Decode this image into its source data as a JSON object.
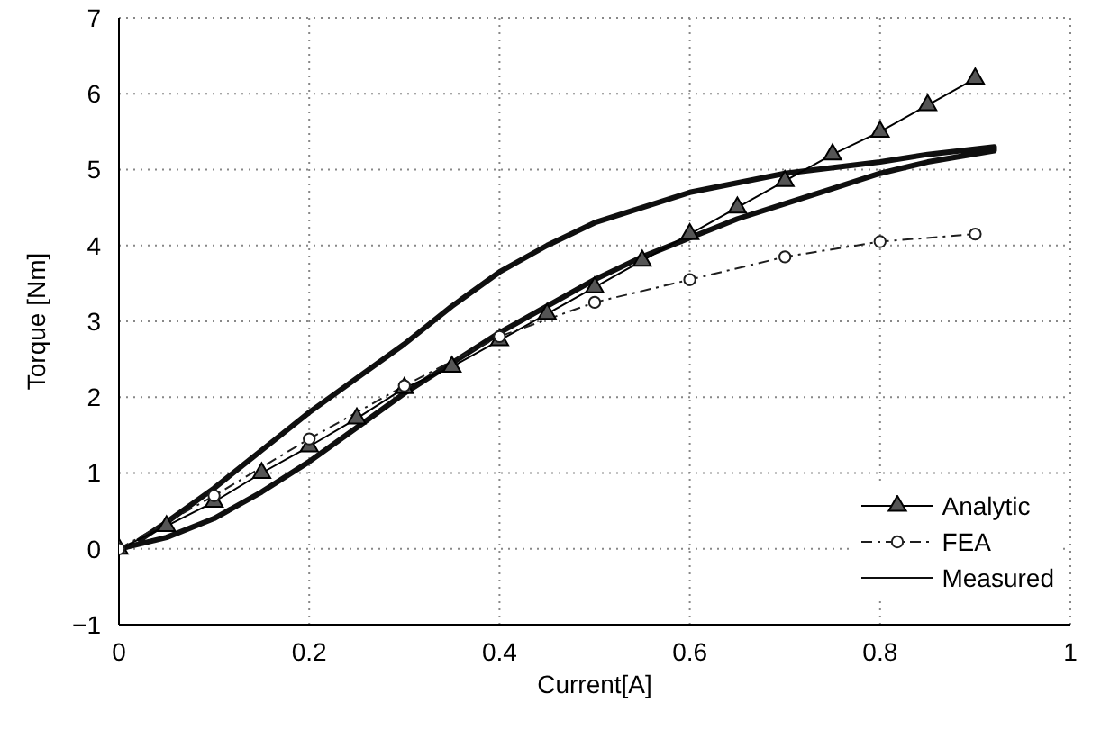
{
  "chart_data": {
    "type": "line",
    "xlabel": "Current[A]",
    "ylabel": "Torque [Nm]",
    "xlim": [
      0,
      1
    ],
    "ylim": [
      -1,
      7
    ],
    "xticks": [
      0,
      0.2,
      0.4,
      0.6,
      0.8,
      1
    ],
    "yticks": [
      -1,
      0,
      1,
      2,
      3,
      4,
      5,
      6,
      7
    ],
    "grid": true,
    "legend": "bottom right",
    "series": [
      {
        "name": "Analytic",
        "color": "#000000",
        "marker": "triangle",
        "line_style": "solid",
        "x": [
          0,
          0.05,
          0.1,
          0.15,
          0.2,
          0.25,
          0.3,
          0.35,
          0.4,
          0.45,
          0.5,
          0.55,
          0.6,
          0.65,
          0.7,
          0.75,
          0.8,
          0.85,
          0.9
        ],
        "values": [
          0,
          0.3,
          0.62,
          1.0,
          1.35,
          1.72,
          2.12,
          2.4,
          2.75,
          3.1,
          3.45,
          3.8,
          4.15,
          4.5,
          4.85,
          5.2,
          5.5,
          5.85,
          6.2
        ]
      },
      {
        "name": "FEA",
        "color": "#1e1e1e",
        "marker": "circle",
        "line_style": "dashed",
        "x": [
          0,
          0.1,
          0.2,
          0.3,
          0.4,
          0.5,
          0.6,
          0.7,
          0.8,
          0.9
        ],
        "values": [
          0,
          0.7,
          1.45,
          2.15,
          2.8,
          3.25,
          3.55,
          3.85,
          4.05,
          4.15
        ]
      },
      {
        "name": "Measured",
        "color": "#0f0f0f",
        "marker": "none",
        "line_style": "solid",
        "x": [
          0,
          0.05,
          0.1,
          0.15,
          0.2,
          0.25,
          0.3,
          0.35,
          0.4,
          0.45,
          0.5,
          0.55,
          0.6,
          0.65,
          0.7,
          0.75,
          0.8,
          0.85,
          0.92,
          0.92,
          0.85,
          0.8,
          0.7,
          0.6,
          0.5,
          0.45,
          0.4,
          0.35,
          0.3,
          0.25,
          0.2,
          0.15,
          0.1,
          0.05,
          0.02
        ],
        "values": [
          0,
          0.15,
          0.4,
          0.75,
          1.15,
          1.6,
          2.05,
          2.45,
          2.85,
          3.2,
          3.55,
          3.85,
          4.1,
          4.35,
          4.55,
          4.75,
          4.95,
          5.1,
          5.25,
          5.3,
          5.2,
          5.1,
          4.95,
          4.7,
          4.3,
          4.0,
          3.65,
          3.2,
          2.7,
          2.25,
          1.8,
          1.3,
          0.8,
          0.35,
          0.1
        ]
      }
    ]
  }
}
